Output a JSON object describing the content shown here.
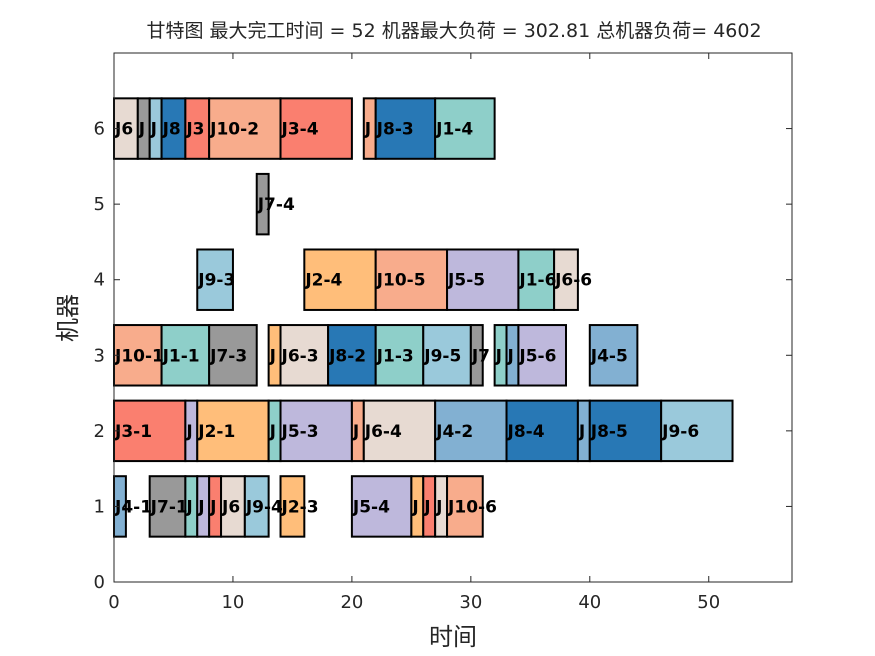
{
  "chart_data": {
    "type": "gantt",
    "title": "甘特图 最大完工时间 = 52 机器最大负荷 = 302.81 总机器负荷= 4602",
    "xlabel": "时间",
    "ylabel": "机器",
    "xlim": [
      0,
      57
    ],
    "ylim": [
      0,
      7
    ],
    "xticks": [
      0,
      10,
      20,
      30,
      40,
      50
    ],
    "yticks": [
      0,
      1,
      2,
      3,
      4,
      5,
      6
    ],
    "grid": false,
    "job_colors": {
      "J1": "#8ecfc9",
      "J2": "#ffbe7a",
      "J3": "#fa7f6f",
      "J4": "#82b0d2",
      "J5": "#beb8dc",
      "J6": "#e7dad2",
      "J7": "#999999",
      "J8": "#2878b5",
      "J9": "#9ac9db",
      "J10": "#f8ac8c"
    },
    "tasks": [
      {
        "machine": 6,
        "start": 0,
        "end": 2,
        "job": "J6",
        "label": "J6"
      },
      {
        "machine": 6,
        "start": 2,
        "end": 3,
        "job": "J7",
        "label": "J"
      },
      {
        "machine": 6,
        "start": 3,
        "end": 4,
        "job": "J9",
        "label": "J"
      },
      {
        "machine": 6,
        "start": 4,
        "end": 6,
        "job": "J8",
        "label": "J8"
      },
      {
        "machine": 6,
        "start": 6,
        "end": 8,
        "job": "J3",
        "label": "J3"
      },
      {
        "machine": 6,
        "start": 8,
        "end": 14,
        "job": "J10",
        "label": "J10-2"
      },
      {
        "machine": 6,
        "start": 14,
        "end": 20,
        "job": "J3",
        "label": "J3-4"
      },
      {
        "machine": 6,
        "start": 21,
        "end": 22,
        "job": "J10",
        "label": "J"
      },
      {
        "machine": 6,
        "start": 22,
        "end": 27,
        "job": "J8",
        "label": "J8-3"
      },
      {
        "machine": 6,
        "start": 27,
        "end": 32,
        "job": "J1",
        "label": "J1-4"
      },
      {
        "machine": 5,
        "start": 12,
        "end": 13,
        "job": "J7",
        "label": "J7-4"
      },
      {
        "machine": 4,
        "start": 7,
        "end": 10,
        "job": "J9",
        "label": "J9-3"
      },
      {
        "machine": 4,
        "start": 16,
        "end": 22,
        "job": "J2",
        "label": "J2-4"
      },
      {
        "machine": 4,
        "start": 22,
        "end": 28,
        "job": "J10",
        "label": "J10-5"
      },
      {
        "machine": 4,
        "start": 28,
        "end": 34,
        "job": "J5",
        "label": "J5-5"
      },
      {
        "machine": 4,
        "start": 34,
        "end": 37,
        "job": "J1",
        "label": "J1-6"
      },
      {
        "machine": 4,
        "start": 37,
        "end": 39,
        "job": "J6",
        "label": "J6-6"
      },
      {
        "machine": 3,
        "start": 0,
        "end": 4,
        "job": "J10",
        "label": "J10-1"
      },
      {
        "machine": 3,
        "start": 4,
        "end": 8,
        "job": "J1",
        "label": "J1-1"
      },
      {
        "machine": 3,
        "start": 8,
        "end": 12,
        "job": "J7",
        "label": "J7-3"
      },
      {
        "machine": 3,
        "start": 13,
        "end": 14,
        "job": "J2",
        "label": "J"
      },
      {
        "machine": 3,
        "start": 14,
        "end": 18,
        "job": "J6",
        "label": "J6-3"
      },
      {
        "machine": 3,
        "start": 18,
        "end": 22,
        "job": "J8",
        "label": "J8-2"
      },
      {
        "machine": 3,
        "start": 22,
        "end": 26,
        "job": "J1",
        "label": "J1-3"
      },
      {
        "machine": 3,
        "start": 26,
        "end": 30,
        "job": "J9",
        "label": "J9-5"
      },
      {
        "machine": 3,
        "start": 30,
        "end": 31,
        "job": "J7",
        "label": "J7"
      },
      {
        "machine": 3,
        "start": 32,
        "end": 33,
        "job": "J1",
        "label": "J"
      },
      {
        "machine": 3,
        "start": 33,
        "end": 34,
        "job": "J4",
        "label": "J"
      },
      {
        "machine": 3,
        "start": 34,
        "end": 38,
        "job": "J5",
        "label": "J5-6"
      },
      {
        "machine": 3,
        "start": 40,
        "end": 44,
        "job": "J4",
        "label": "J4-5"
      },
      {
        "machine": 2,
        "start": 0,
        "end": 6,
        "job": "J3",
        "label": "J3-1"
      },
      {
        "machine": 2,
        "start": 6,
        "end": 7,
        "job": "J5",
        "label": "J"
      },
      {
        "machine": 2,
        "start": 7,
        "end": 13,
        "job": "J2",
        "label": "J2-1"
      },
      {
        "machine": 2,
        "start": 13,
        "end": 14,
        "job": "J1",
        "label": "J"
      },
      {
        "machine": 2,
        "start": 14,
        "end": 20,
        "job": "J5",
        "label": "J5-3"
      },
      {
        "machine": 2,
        "start": 20,
        "end": 21,
        "job": "J10",
        "label": "J"
      },
      {
        "machine": 2,
        "start": 21,
        "end": 27,
        "job": "J6",
        "label": "J6-4"
      },
      {
        "machine": 2,
        "start": 27,
        "end": 33,
        "job": "J4",
        "label": "J4-2"
      },
      {
        "machine": 2,
        "start": 33,
        "end": 39,
        "job": "J8",
        "label": "J8-4"
      },
      {
        "machine": 2,
        "start": 39,
        "end": 40,
        "job": "J4",
        "label": "J"
      },
      {
        "machine": 2,
        "start": 40,
        "end": 46,
        "job": "J8",
        "label": "J8-5"
      },
      {
        "machine": 2,
        "start": 46,
        "end": 52,
        "job": "J9",
        "label": "J9-6"
      },
      {
        "machine": 1,
        "start": 0,
        "end": 1,
        "job": "J4",
        "label": "J4-1"
      },
      {
        "machine": 1,
        "start": 3,
        "end": 6,
        "job": "J7",
        "label": "J7-1"
      },
      {
        "machine": 1,
        "start": 6,
        "end": 7,
        "job": "J1",
        "label": "J"
      },
      {
        "machine": 1,
        "start": 7,
        "end": 8,
        "job": "J5",
        "label": "J"
      },
      {
        "machine": 1,
        "start": 8,
        "end": 9,
        "job": "J3",
        "label": "J"
      },
      {
        "machine": 1,
        "start": 9,
        "end": 11,
        "job": "J6",
        "label": "J6"
      },
      {
        "machine": 1,
        "start": 11,
        "end": 13,
        "job": "J9",
        "label": "J9-4"
      },
      {
        "machine": 1,
        "start": 14,
        "end": 16,
        "job": "J2",
        "label": "J2-3"
      },
      {
        "machine": 1,
        "start": 20,
        "end": 25,
        "job": "J5",
        "label": "J5-4"
      },
      {
        "machine": 1,
        "start": 25,
        "end": 26,
        "job": "J2",
        "label": "J"
      },
      {
        "machine": 1,
        "start": 26,
        "end": 27,
        "job": "J3",
        "label": "J"
      },
      {
        "machine": 1,
        "start": 27,
        "end": 28,
        "job": "J6",
        "label": "J"
      },
      {
        "machine": 1,
        "start": 28,
        "end": 31,
        "job": "J10",
        "label": "J10-6"
      }
    ]
  }
}
